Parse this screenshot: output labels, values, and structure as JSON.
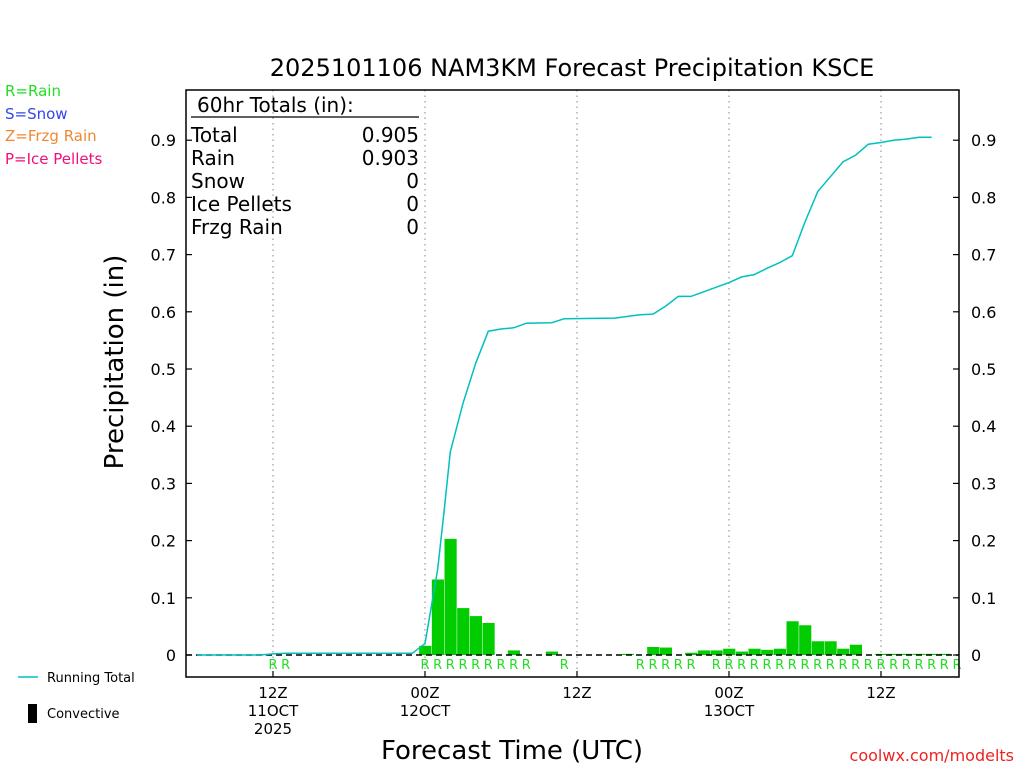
{
  "chart_data": {
    "type": "bar",
    "title": "2025101106 NAM3KM Forecast Precipitation KSCE",
    "xlabel": "Forecast Time (UTC)",
    "ylabel": "Precipitation (in)",
    "ylim": [
      0,
      1.0
    ],
    "y_ticks": [
      "0",
      "0.1",
      "0.2",
      "0.3",
      "0.4",
      "0.5",
      "0.6",
      "0.7",
      "0.8",
      "0.9"
    ],
    "x_range_hours": [
      0,
      60
    ],
    "x_ticks": [
      {
        "hour": 6,
        "line1": "12Z",
        "line2": "11OCT",
        "line3": "2025"
      },
      {
        "hour": 18,
        "line1": "00Z",
        "line2": "12OCT",
        "line3": ""
      },
      {
        "hour": 30,
        "line1": "12Z",
        "line2": "",
        "line3": ""
      },
      {
        "hour": 42,
        "line1": "00Z",
        "line2": "13OCT",
        "line3": ""
      },
      {
        "hour": 54,
        "line1": "12Z",
        "line2": "",
        "line3": ""
      }
    ],
    "grid": "vertical dotted at 12Z/00Z",
    "series": [
      {
        "name": "Rain",
        "kind": "bar",
        "color": "#00cc00",
        "values": [
          [
            18,
            0.016
          ],
          [
            19,
            0.132
          ],
          [
            20,
            0.203
          ],
          [
            21,
            0.082
          ],
          [
            22,
            0.068
          ],
          [
            23,
            0.056
          ],
          [
            25,
            0.008
          ],
          [
            28,
            0.006
          ],
          [
            34,
            0.002
          ],
          [
            36,
            0.014
          ],
          [
            37,
            0.013
          ],
          [
            39,
            0.004
          ],
          [
            40,
            0.008
          ],
          [
            41,
            0.008
          ],
          [
            42,
            0.011
          ],
          [
            43,
            0.006
          ],
          [
            44,
            0.011
          ],
          [
            45,
            0.009
          ],
          [
            46,
            0.011
          ],
          [
            47,
            0.059
          ],
          [
            48,
            0.052
          ],
          [
            49,
            0.024
          ],
          [
            50,
            0.024
          ],
          [
            51,
            0.011
          ],
          [
            52,
            0.018
          ],
          [
            54,
            0.002
          ],
          [
            55,
            0.002
          ],
          [
            56,
            0.002
          ],
          [
            57,
            0.002
          ],
          [
            58,
            0.002
          ],
          [
            59,
            0.002
          ]
        ]
      },
      {
        "name": "Running Total",
        "kind": "line",
        "color": "#00c0c0",
        "points": [
          [
            0,
            0.0
          ],
          [
            5,
            0.0
          ],
          [
            6,
            0.002
          ],
          [
            7,
            0.003
          ],
          [
            17,
            0.003
          ],
          [
            18,
            0.02
          ],
          [
            19,
            0.15
          ],
          [
            19.5,
            0.25
          ],
          [
            20,
            0.355
          ],
          [
            21,
            0.44
          ],
          [
            22,
            0.51
          ],
          [
            23,
            0.566
          ],
          [
            24,
            0.57
          ],
          [
            25,
            0.572
          ],
          [
            26,
            0.58
          ],
          [
            28,
            0.581
          ],
          [
            29,
            0.588
          ],
          [
            33,
            0.589
          ],
          [
            34,
            0.592
          ],
          [
            35,
            0.595
          ],
          [
            36,
            0.596
          ],
          [
            37,
            0.61
          ],
          [
            38,
            0.627
          ],
          [
            39,
            0.627
          ],
          [
            40,
            0.635
          ],
          [
            41,
            0.643
          ],
          [
            42,
            0.651
          ],
          [
            43,
            0.661
          ],
          [
            44,
            0.665
          ],
          [
            45,
            0.676
          ],
          [
            46,
            0.686
          ],
          [
            47,
            0.698
          ],
          [
            48,
            0.757
          ],
          [
            49,
            0.81
          ],
          [
            50,
            0.836
          ],
          [
            51,
            0.862
          ],
          [
            52,
            0.874
          ],
          [
            53,
            0.893
          ],
          [
            54,
            0.896
          ],
          [
            55,
            0.9
          ],
          [
            56,
            0.902
          ],
          [
            57,
            0.905
          ],
          [
            58,
            0.905
          ]
        ]
      }
    ],
    "type_codes": {
      "label": "R",
      "hours": [
        6,
        7,
        18,
        19,
        20,
        21,
        22,
        23,
        24,
        25,
        26,
        29,
        35,
        36,
        37,
        38,
        39,
        41,
        42,
        43,
        44,
        45,
        46,
        47,
        48,
        49,
        50,
        51,
        52,
        53,
        54,
        55,
        56,
        57,
        58,
        59,
        60
      ]
    }
  },
  "totals_box": {
    "header": "60hr Totals (in):",
    "rows": [
      {
        "label": "Total",
        "value": "0.905"
      },
      {
        "label": "Rain",
        "value": "0.903"
      },
      {
        "label": "Snow",
        "value": "0"
      },
      {
        "label": "Ice Pellets",
        "value": "0"
      },
      {
        "label": "Frzg Rain",
        "value": "0"
      }
    ]
  },
  "legend_top": [
    {
      "text": "R=Rain",
      "color": "#22dd22"
    },
    {
      "text": "S=Snow",
      "color": "#3344ee"
    },
    {
      "text": "Z=Frzg Rain",
      "color": "#ee8833"
    },
    {
      "text": "P=Ice Pellets",
      "color": "#ee1177"
    }
  ],
  "legend_bottom": {
    "running_total": "Running Total",
    "convective": "Convective"
  },
  "credit": "coolwx.com/modelts",
  "colors": {
    "rain": "#00cc00",
    "running_total": "#00c0c0",
    "credit": "#ee2222"
  }
}
